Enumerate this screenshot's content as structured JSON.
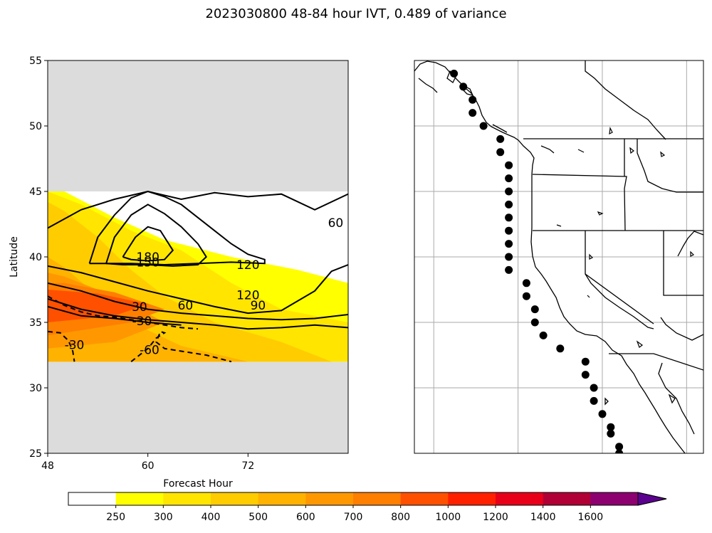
{
  "title": "2023030800 48-84 hour IVT, 0.489 of variance",
  "chart_data": [
    {
      "type": "heatmap",
      "xlabel": "Forecast Hour",
      "ylabel": "Latitude",
      "xlim": [
        48,
        84
      ],
      "ylim": [
        25,
        55
      ],
      "xticks": [
        48,
        60,
        72
      ],
      "yticks": [
        25,
        30,
        35,
        40,
        45,
        50,
        55
      ],
      "data_lat_range": [
        32,
        45
      ],
      "no_data_color": "#dcdcdc",
      "fill_levels": [
        250,
        300,
        400,
        500,
        600,
        700,
        800
      ],
      "fill_colors": [
        "#ffff00",
        "#ffe500",
        "#ffcc00",
        "#ffb200",
        "#ff9800",
        "#ff7f00",
        "#ff5000"
      ],
      "filled_regions": [
        {
          "level": 250,
          "polygon": [
            [
              48,
              32
            ],
            [
              84,
              32
            ],
            [
              84,
              38
            ],
            [
              78,
              39
            ],
            [
              70,
              40
            ],
            [
              62,
              41.3
            ],
            [
              56,
              43
            ],
            [
              50,
              45
            ],
            [
              48,
              45
            ]
          ]
        },
        {
          "level": 300,
          "polygon": [
            [
              48,
              32
            ],
            [
              84,
              32
            ],
            [
              84,
              35
            ],
            [
              76,
              36
            ],
            [
              70,
              38
            ],
            [
              64,
              40.5
            ],
            [
              58,
              42
            ],
            [
              52,
              44
            ],
            [
              48,
              45
            ]
          ]
        },
        {
          "level": 400,
          "polygon": [
            [
              48,
              32
            ],
            [
              82,
              32
            ],
            [
              76,
              33.5
            ],
            [
              68,
              35
            ],
            [
              62,
              37
            ],
            [
              58,
              39
            ],
            [
              54,
              41.5
            ],
            [
              50,
              43.5
            ],
            [
              48,
              44.2
            ]
          ]
        },
        {
          "level": 500,
          "polygon": [
            [
              48,
              32
            ],
            [
              72,
              32
            ],
            [
              64,
              33.2
            ],
            [
              58,
              35
            ],
            [
              54,
              37
            ],
            [
              50,
              39.2
            ],
            [
              48,
              40
            ]
          ]
        },
        {
          "level": 600,
          "polygon": [
            [
              48,
              33
            ],
            [
              56,
              33.5
            ],
            [
              62,
              35
            ],
            [
              56,
              37
            ],
            [
              50,
              38.5
            ],
            [
              48,
              38.8
            ]
          ]
        },
        {
          "level": 700,
          "polygon": [
            [
              48,
              34
            ],
            [
              58,
              35
            ],
            [
              62,
              36
            ],
            [
              56,
              37.3
            ],
            [
              50,
              38
            ],
            [
              48,
              38
            ]
          ]
        },
        {
          "level": 800,
          "polygon": [
            [
              48,
              35
            ],
            [
              56,
              35.5
            ],
            [
              60,
              36.4
            ],
            [
              54,
              37.2
            ],
            [
              48,
              37.5
            ]
          ]
        }
      ],
      "contours": [
        {
          "label": "60",
          "style": "solid",
          "x": [
            48,
            52,
            56,
            60,
            64,
            68,
            72,
            76,
            80,
            84
          ],
          "y": [
            42.2,
            43.6,
            44.4,
            45,
            44.4,
            44.9,
            44.6,
            44.8,
            43.6,
            44.8
          ]
        },
        {
          "label": "120",
          "style": "solid",
          "x": [
            48,
            52,
            56,
            60,
            64,
            68,
            72,
            76,
            80,
            82,
            84
          ],
          "y": [
            39.3,
            38.8,
            38.1,
            37.4,
            36.8,
            36.2,
            35.7,
            35.9,
            37.4,
            38.9,
            39.4
          ]
        },
        {
          "label": "90",
          "style": "solid",
          "x": [
            48,
            52,
            56,
            60,
            64,
            68,
            72,
            76,
            80,
            84
          ],
          "y": [
            38,
            37.4,
            36.6,
            36,
            35.7,
            35.5,
            35.3,
            35.2,
            35.3,
            35.6
          ]
        },
        {
          "label": "60",
          "style": "solid",
          "x": [
            48,
            52,
            56,
            60,
            64,
            68,
            72,
            76,
            80,
            84
          ],
          "y": [
            36.8,
            36,
            35.5,
            35.2,
            35,
            34.8,
            34.5,
            34.6,
            34.8,
            34.6
          ]
        },
        {
          "label": "30",
          "style": "solid",
          "x": [
            48,
            52,
            56,
            60,
            64
          ],
          "y": [
            36.2,
            35.5,
            35.3,
            35,
            34.8
          ]
        },
        {
          "label": "180",
          "style": "solid",
          "x": [
            57,
            58.5,
            60,
            61.5,
            63,
            62,
            60,
            58,
            57
          ],
          "y": [
            40,
            41.5,
            42.3,
            42,
            40.5,
            39.8,
            39.7,
            39.8,
            40
          ]
        },
        {
          "label": "150",
          "style": "solid",
          "x": [
            55,
            56,
            58,
            60,
            62,
            64,
            66,
            67,
            66,
            63,
            60,
            57,
            55
          ],
          "y": [
            39.5,
            41.5,
            43.2,
            44,
            43.3,
            42.3,
            41,
            40,
            39.4,
            39.3,
            39.4,
            39.4,
            39.5
          ]
        },
        {
          "label": "120",
          "style": "solid",
          "x": [
            53,
            54,
            56,
            58,
            60,
            62,
            64,
            66,
            68,
            70,
            72,
            74,
            74,
            70,
            66,
            62,
            58,
            55,
            53
          ],
          "y": [
            39.5,
            41.5,
            43.2,
            44.5,
            45,
            44.6,
            44,
            43,
            42,
            41,
            40.2,
            39.8,
            39.5,
            39.6,
            39.5,
            39.4,
            39.5,
            39.5,
            39.5
          ]
        },
        {
          "label": "-30",
          "style": "dashed",
          "x": [
            48,
            50,
            52,
            54,
            56,
            58,
            60,
            62,
            64,
            66
          ],
          "y": [
            37,
            36.3,
            35.8,
            35.5,
            35.4,
            35.2,
            35,
            34.8,
            34.6,
            34.5
          ]
        },
        {
          "label": "-60",
          "style": "dashed",
          "x": [
            58,
            59,
            60,
            61,
            62,
            61.5,
            61,
            62,
            64,
            67,
            70
          ],
          "y": [
            32,
            32.5,
            33,
            33.8,
            34.2,
            34.3,
            33.5,
            33,
            32.8,
            32.5,
            32
          ]
        },
        {
          "label": "-30",
          "style": "dashed",
          "x": [
            48,
            49.5,
            50.5,
            51,
            51.2
          ],
          "y": [
            34.3,
            34.2,
            33.6,
            32.8,
            32
          ]
        }
      ],
      "contour_labels": [
        {
          "text": "60",
          "x": 82.5,
          "y": 42.6
        },
        {
          "text": "120",
          "x": 72,
          "y": 39.4
        },
        {
          "text": "120",
          "x": 72,
          "y": 37.1
        },
        {
          "text": "90",
          "x": 73.2,
          "y": 36.3
        },
        {
          "text": "60",
          "x": 64.5,
          "y": 36.3
        },
        {
          "text": "30",
          "x": 59,
          "y": 36.2
        },
        {
          "text": "-30",
          "x": 59.3,
          "y": 35.1
        },
        {
          "text": "180",
          "x": 60,
          "y": 40
        },
        {
          "text": "150",
          "x": 60,
          "y": 39.6
        },
        {
          "text": "-60",
          "x": 60.2,
          "y": 32.9
        },
        {
          "text": "-30",
          "x": 51.2,
          "y": 33.3
        }
      ]
    },
    {
      "type": "scatter",
      "projection": "map",
      "lon_range": [
        -137.3,
        -103
      ],
      "lat_range": [
        25,
        55
      ],
      "gridlines_lon": [
        -135,
        -125,
        -115,
        -105
      ],
      "gridlines_lat": [
        30,
        35,
        40,
        45,
        50
      ],
      "points": [
        [
          -132.6,
          54.0
        ],
        [
          -131.5,
          53.0
        ],
        [
          -130.4,
          52.0
        ],
        [
          -130.4,
          51.0
        ],
        [
          -129.1,
          50.0
        ],
        [
          -127.1,
          49.0
        ],
        [
          -127.1,
          48.0
        ],
        [
          -126.1,
          47.0
        ],
        [
          -126.1,
          46.0
        ],
        [
          -126.1,
          45.0
        ],
        [
          -126.1,
          44.0
        ],
        [
          -126.1,
          43.0
        ],
        [
          -126.1,
          42.0
        ],
        [
          -126.1,
          41.0
        ],
        [
          -126.1,
          40.0
        ],
        [
          -126.1,
          39.0
        ],
        [
          -124.0,
          38.0
        ],
        [
          -124.0,
          37.0
        ],
        [
          -123.0,
          36.0
        ],
        [
          -123.0,
          35.0
        ],
        [
          -122.0,
          34.0
        ],
        [
          -120.0,
          33.0
        ],
        [
          -117.0,
          32.0
        ],
        [
          -117.0,
          31.0
        ],
        [
          -116.0,
          30.0
        ],
        [
          -116.0,
          29.0
        ],
        [
          -115.0,
          28.0
        ],
        [
          -114.0,
          27.0
        ],
        [
          -114.0,
          26.5
        ],
        [
          -113.0,
          25.5
        ],
        [
          -113.0,
          25.0
        ]
      ],
      "point_color": "#000000"
    }
  ],
  "colorbar": {
    "labels": [
      "250",
      "300",
      "400",
      "500",
      "600",
      "700",
      "800",
      "1000",
      "1200",
      "1400",
      "1600"
    ],
    "colors": [
      "#ffffff",
      "#ffff00",
      "#ffe500",
      "#ffcc00",
      "#ffb200",
      "#ff9800",
      "#ff7f00",
      "#ff5000",
      "#ff2000",
      "#e8001a",
      "#b00035",
      "#8c0070",
      "#5c0090"
    ],
    "extend": "max"
  }
}
